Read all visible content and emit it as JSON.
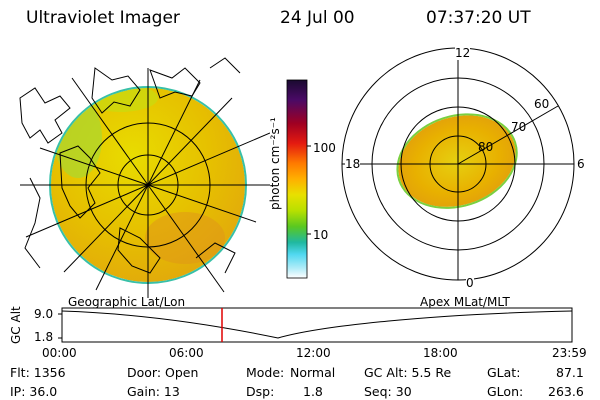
{
  "header": {
    "instrument": "Ultraviolet Imager",
    "date": "24 Jul 00",
    "time": "07:37:20 UT"
  },
  "colorbar": {
    "label": "photon cm⁻²s⁻¹",
    "ticks": [
      "100",
      "10"
    ],
    "colors": [
      "#1a0a30",
      "#4a0a66",
      "#a00022",
      "#e41a10",
      "#ff7a00",
      "#ffb000",
      "#e8e000",
      "#b8e000",
      "#5ac820",
      "#20b8a0",
      "#50d8f0",
      "#b0ecf8",
      "#ffffff"
    ]
  },
  "geographic": {
    "label": "Geographic Lat/Lon",
    "fill": "#e2b400"
  },
  "polar": {
    "label": "Apex MLat/MLT",
    "mlt_labels": [
      "12",
      "18",
      "6",
      "0"
    ],
    "lat_labels": [
      "60",
      "70",
      "80"
    ],
    "fill": "#e8b000"
  },
  "altitude_plot": {
    "axis_label": "GC Alt",
    "y_ticks": [
      "9.0",
      "1.8"
    ],
    "x_ticks": [
      "00:00",
      "06:00",
      "12:00",
      "18:00",
      "23:59"
    ],
    "marker_color": "#e00000"
  },
  "footer": {
    "flt": "Flt: 1356",
    "ip": "IP: 36.0",
    "door": "Door: Open",
    "gain": "Gain: 13",
    "mode_label": "Mode:",
    "mode": "Normal",
    "dsp_label": "Dsp:",
    "dsp": "1.8",
    "gc_alt": "GC Alt: 5.5 Re",
    "seq": "Seq: 30",
    "glat_label": "GLat:",
    "glat": "87.1",
    "glon_label": "GLon:",
    "glon": "263.6"
  }
}
